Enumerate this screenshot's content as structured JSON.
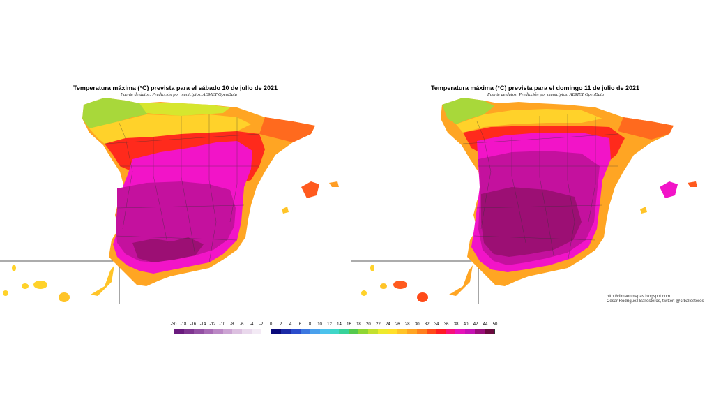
{
  "maps": [
    {
      "title": "Temperatura máxima (°C) prevista para el sábado 10 de julio de 2021",
      "source": "Fuente de datos: Predicción por municipios. AEMET OpenData"
    },
    {
      "title": "Temperatura máxima (°C) prevista para el domingo 11 de julio de 2021",
      "source": "Fuente de datos: Predicción por municipios. AEMET OpenData"
    }
  ],
  "credit": {
    "url": "http://climaenmapas.blogspot.com",
    "author": "César Rodríguez Ballesteros, twitter: @crballesteros"
  },
  "legend": {
    "labels": [
      "-30",
      "-18",
      "-16",
      "-14",
      "-12",
      "-10",
      "-8",
      "-6",
      "-4",
      "-2",
      "0",
      "2",
      "4",
      "6",
      "8",
      "10",
      "12",
      "14",
      "16",
      "18",
      "20",
      "22",
      "24",
      "26",
      "28",
      "30",
      "32",
      "34",
      "36",
      "38",
      "40",
      "42",
      "44",
      "50"
    ],
    "colors": [
      "#6a1b7e",
      "#7f3590",
      "#9350a3",
      "#a86bb5",
      "#bb88c5",
      "#cca4d3",
      "#dcc0e0",
      "#e9d8ec",
      "#f3eaf5",
      "#ffffff",
      "#0a0a7a",
      "#1b2aa6",
      "#2a4ccc",
      "#3c78e0",
      "#4aa0ec",
      "#4cc2ec",
      "#3fd6c8",
      "#37d29a",
      "#55c94d",
      "#8fd633",
      "#c3e02e",
      "#eeea2c",
      "#ffe02a",
      "#ffc428",
      "#ffa523",
      "#ff801e",
      "#ff4a18",
      "#ff1c24",
      "#f7127a",
      "#e613b9",
      "#c612b4",
      "#9a0f7a",
      "#6a0b3e"
    ]
  },
  "colors": {
    "green": "#9ed63a",
    "yellow": "#ffd42a",
    "orange": "#ff9d24",
    "red": "#ff2a1c",
    "pink": "#f214c8",
    "magenta": "#c4119e",
    "purple": "#9c0f74"
  }
}
